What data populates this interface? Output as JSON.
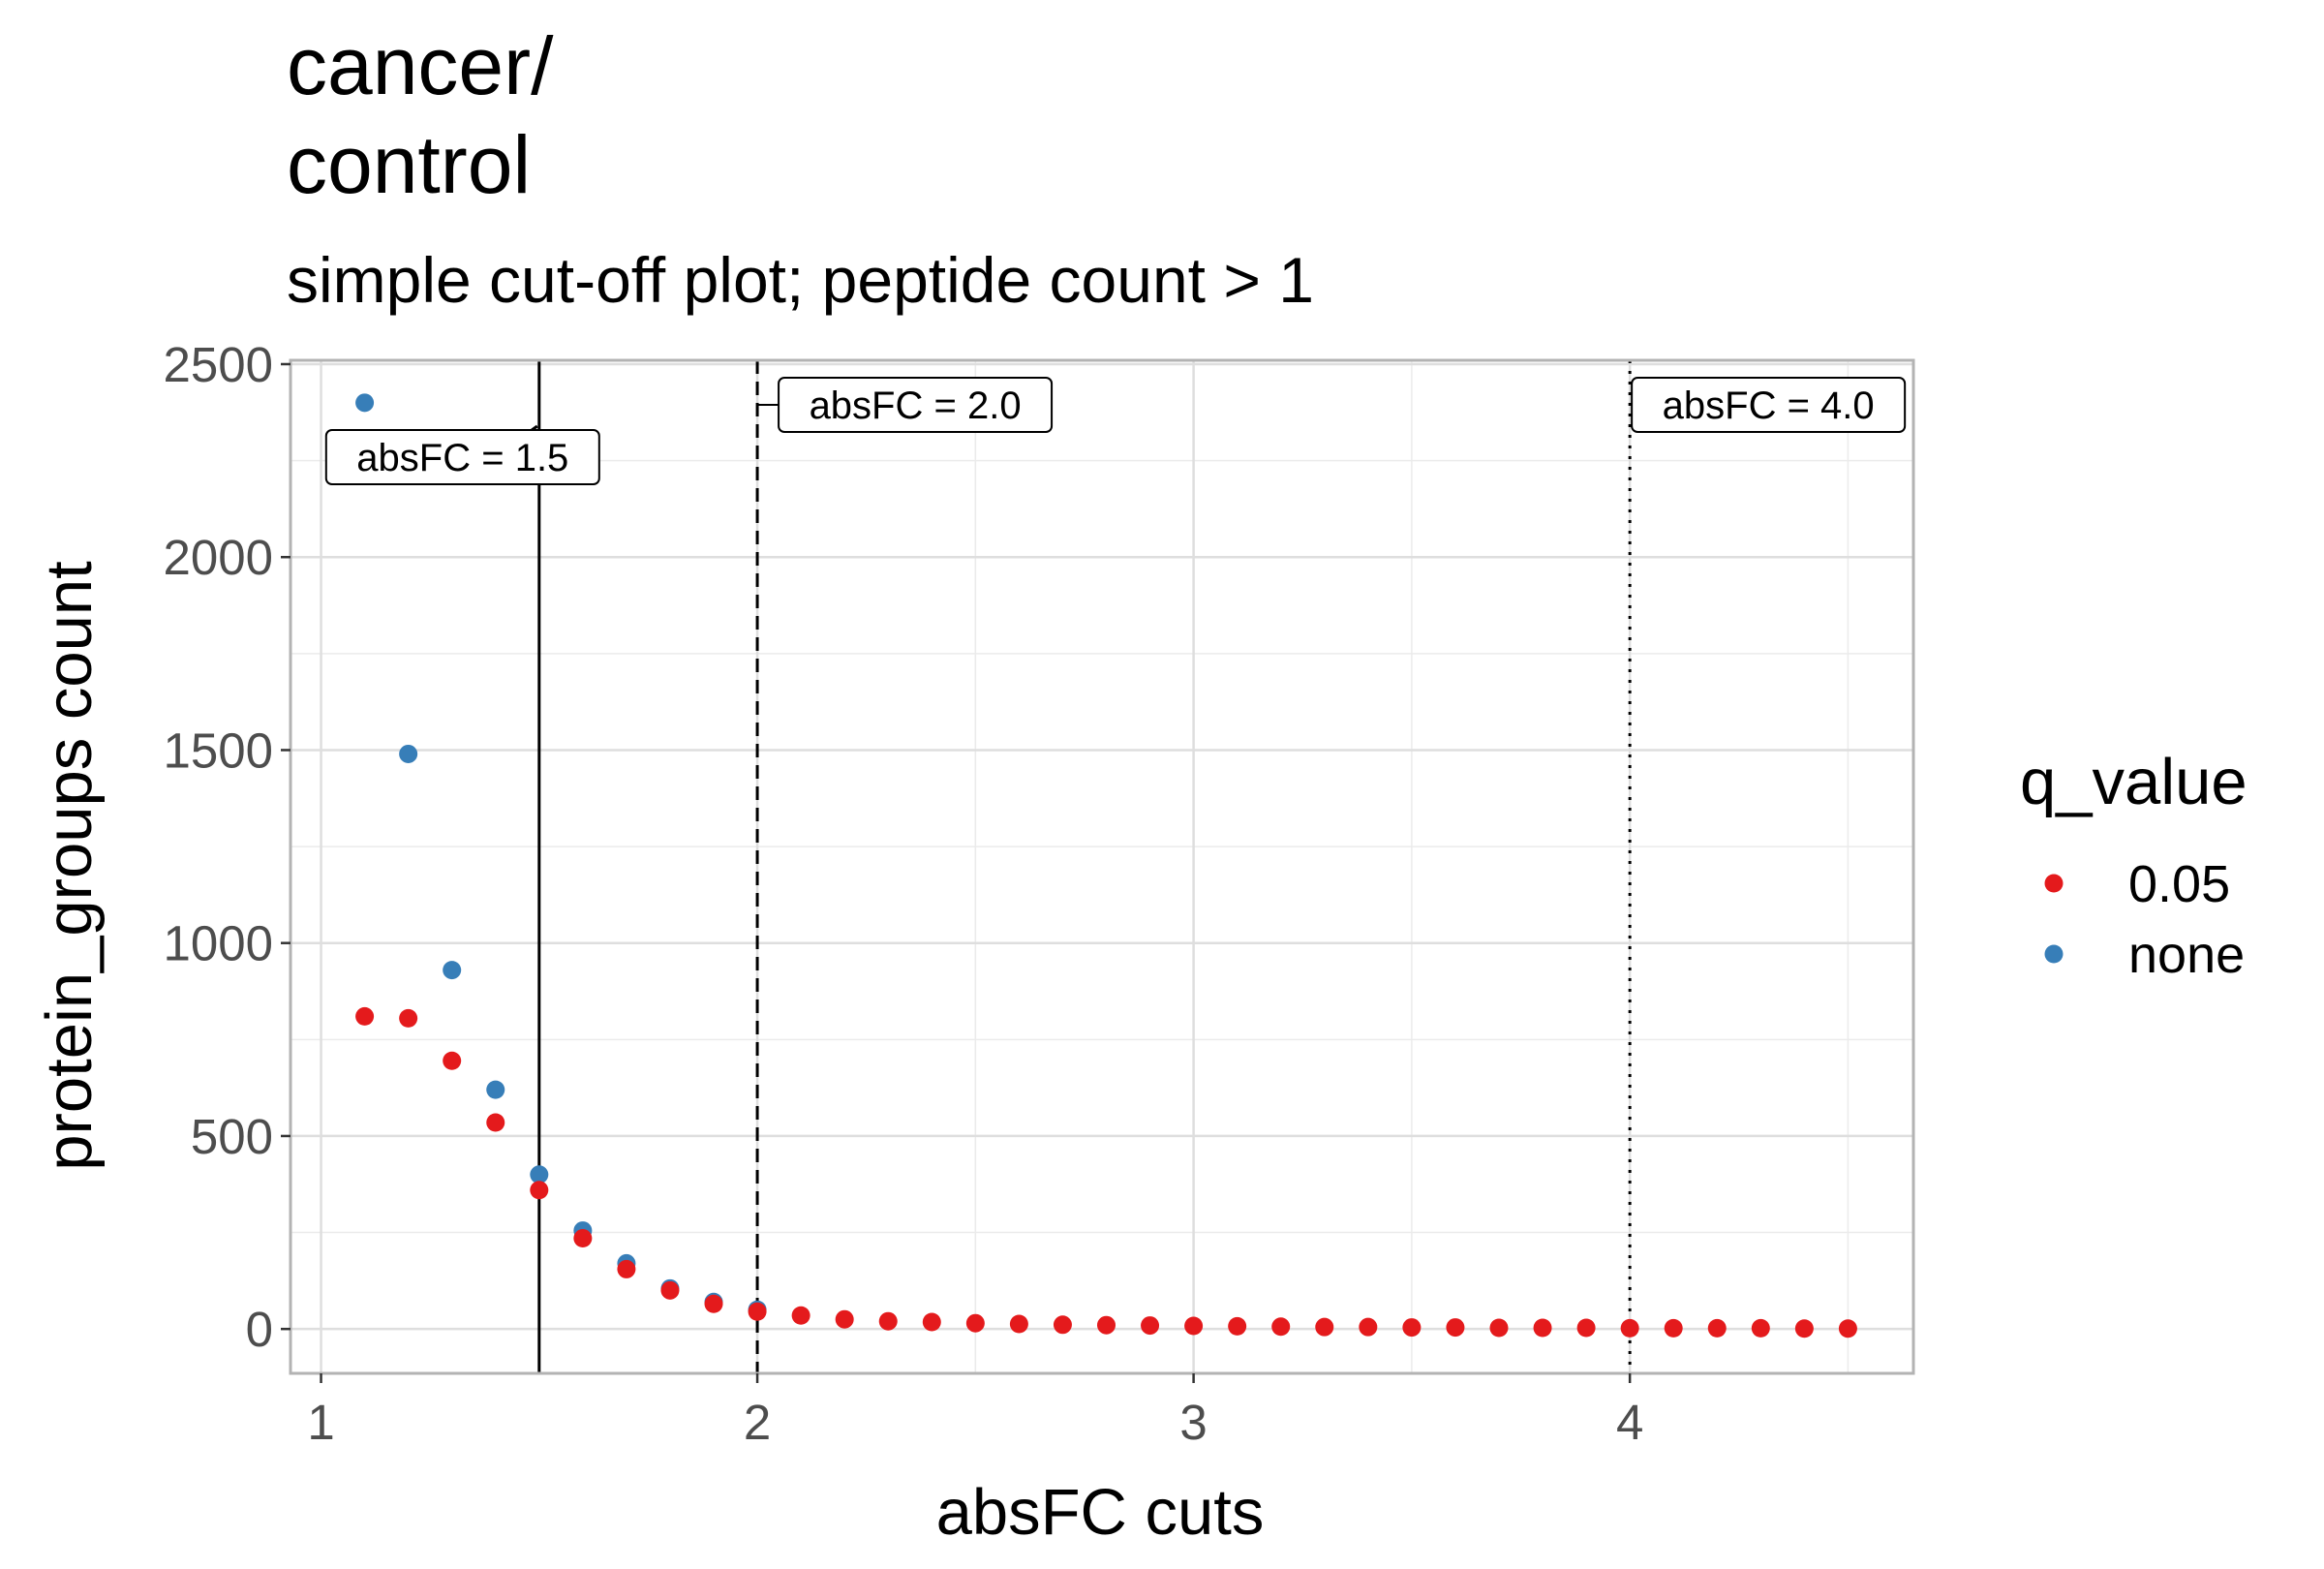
{
  "chart_data": {
    "type": "scatter",
    "title_lines": [
      "cancer/",
      "control"
    ],
    "subtitle": "simple cut-off plot; peptide count > 1",
    "xlabel": "absFC cuts",
    "ylabel": "protein_groups count",
    "xlim": [
      0.93,
      4.65
    ],
    "ylim": [
      -115,
      2510
    ],
    "x_ticks": [
      1,
      2,
      3,
      4
    ],
    "x_tick_labels": [
      "1",
      "2",
      "3",
      "4"
    ],
    "y_ticks": [
      0,
      500,
      1000,
      1500,
      2000,
      2500
    ],
    "y_tick_labels": [
      "0",
      "500",
      "1000",
      "1500",
      "2000",
      "2500"
    ],
    "grid": true,
    "legend": {
      "title": "q_value",
      "position": "right",
      "entries": [
        {
          "label": "0.05",
          "color": "#e41a1c"
        },
        {
          "label": "none",
          "color": "#377eb8"
        }
      ]
    },
    "series": [
      {
        "name": "none",
        "color": "#377eb8",
        "x": [
          1.1,
          1.2,
          1.3,
          1.4,
          1.5,
          1.6,
          1.7,
          1.8,
          1.9,
          2.0
        ],
        "y": [
          2400,
          1490,
          930,
          620,
          400,
          255,
          170,
          105,
          70,
          50
        ]
      },
      {
        "name": "0.05",
        "color": "#e41a1c",
        "x": [
          1.1,
          1.2,
          1.3,
          1.4,
          1.5,
          1.6,
          1.7,
          1.8,
          1.9,
          2.0,
          2.1,
          2.2,
          2.3,
          2.4,
          2.5,
          2.6,
          2.7,
          2.8,
          2.9,
          3.0,
          3.1,
          3.2,
          3.3,
          3.4,
          3.5,
          3.6,
          3.7,
          3.8,
          3.9,
          4.0,
          4.1,
          4.2,
          4.3,
          4.4,
          4.5
        ],
        "y": [
          810,
          805,
          695,
          535,
          360,
          235,
          155,
          100,
          65,
          45,
          35,
          25,
          20,
          18,
          15,
          13,
          11,
          10,
          9,
          8,
          7,
          6,
          5,
          5,
          4,
          4,
          3,
          3,
          3,
          2,
          2,
          2,
          2,
          1,
          1
        ]
      }
    ],
    "vlines": [
      {
        "x": 1.5,
        "style": "solid",
        "label": "absFC = 1.5"
      },
      {
        "x": 2.0,
        "style": "dashed",
        "label": "absFC = 2.0"
      },
      {
        "x": 4.0,
        "style": "dotted",
        "label": "absFC = 4.0"
      }
    ]
  }
}
